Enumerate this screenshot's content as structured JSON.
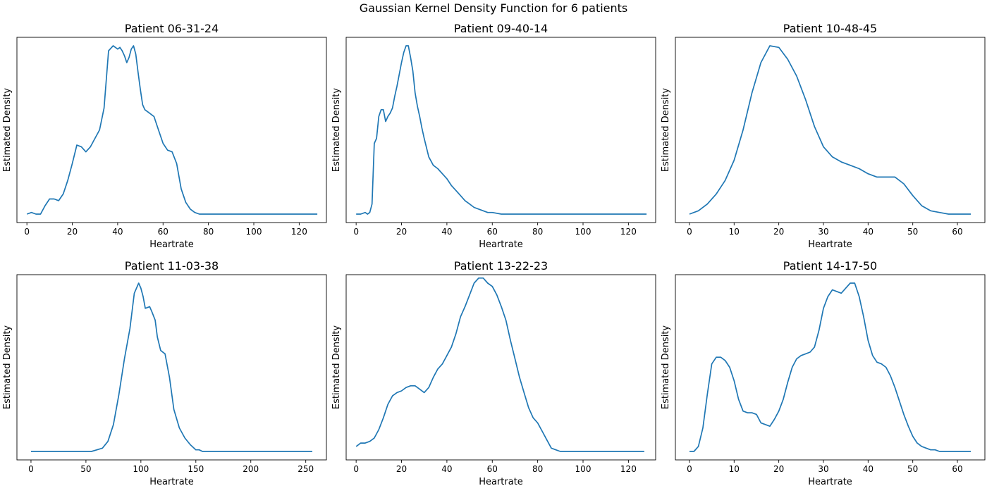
{
  "figure": {
    "suptitle": "Gaussian Kernel Density Function for 6 patients",
    "line_color": "#1f77b4"
  },
  "chart_data": [
    {
      "type": "line",
      "title": "Patient 06-31-24",
      "xlabel": "Heartrate",
      "ylabel": "Estimated Density",
      "xticks": [
        0,
        20,
        40,
        60,
        80,
        100,
        120
      ],
      "xlim": [
        -4.4,
        132
      ],
      "ylim": [
        -0.05,
        1.05
      ],
      "yticks_visible": false,
      "x": [
        0,
        2,
        4,
        6,
        8,
        10,
        12,
        14,
        16,
        18,
        20,
        22,
        24,
        26,
        28,
        30,
        32,
        34,
        36,
        38,
        39,
        40,
        41,
        42,
        43,
        44,
        45,
        46,
        47,
        48,
        49,
        50,
        51,
        52,
        54,
        56,
        58,
        60,
        62,
        64,
        66,
        68,
        70,
        72,
        74,
        76,
        78,
        80,
        90,
        100,
        110,
        120,
        128
      ],
      "y": [
        0.0,
        0.01,
        0.0,
        0.0,
        0.05,
        0.09,
        0.09,
        0.08,
        0.12,
        0.2,
        0.3,
        0.41,
        0.4,
        0.37,
        0.4,
        0.45,
        0.5,
        0.63,
        0.97,
        1.0,
        0.99,
        0.98,
        0.99,
        0.97,
        0.94,
        0.9,
        0.93,
        0.98,
        1.0,
        0.95,
        0.84,
        0.74,
        0.65,
        0.62,
        0.6,
        0.58,
        0.5,
        0.42,
        0.38,
        0.37,
        0.3,
        0.15,
        0.07,
        0.03,
        0.01,
        0.0,
        0.0,
        0.0,
        0.0,
        0.0,
        0.0,
        0.0,
        0.0
      ]
    },
    {
      "type": "line",
      "title": "Patient 09-40-14",
      "xlabel": "Heartrate",
      "ylabel": "Estimated Density",
      "xticks": [
        0,
        20,
        40,
        60,
        80,
        100,
        120
      ],
      "xlim": [
        -4.4,
        132
      ],
      "ylim": [
        -0.05,
        1.05
      ],
      "yticks_visible": false,
      "x": [
        0,
        2,
        4,
        5,
        6,
        7,
        8,
        9,
        10,
        11,
        12,
        13,
        14,
        15,
        16,
        17,
        18,
        19,
        20,
        21,
        22,
        23,
        24,
        25,
        26,
        27,
        28,
        29,
        30,
        32,
        34,
        36,
        38,
        40,
        42,
        44,
        46,
        48,
        50,
        52,
        54,
        56,
        58,
        60,
        64,
        70,
        80,
        90,
        100,
        110,
        120,
        128
      ],
      "y": [
        0.0,
        0.0,
        0.01,
        0.0,
        0.01,
        0.06,
        0.42,
        0.45,
        0.58,
        0.62,
        0.62,
        0.55,
        0.58,
        0.6,
        0.63,
        0.7,
        0.76,
        0.83,
        0.9,
        0.96,
        1.0,
        1.0,
        0.93,
        0.85,
        0.72,
        0.64,
        0.58,
        0.51,
        0.45,
        0.34,
        0.29,
        0.27,
        0.24,
        0.21,
        0.17,
        0.14,
        0.11,
        0.08,
        0.06,
        0.04,
        0.03,
        0.02,
        0.01,
        0.01,
        0.0,
        0.0,
        0.0,
        0.0,
        0.0,
        0.0,
        0.0,
        0.0
      ]
    },
    {
      "type": "line",
      "title": "Patient 10-48-45",
      "xlabel": "Heartrate",
      "ylabel": "Estimated Density",
      "xticks": [
        0,
        10,
        20,
        30,
        40,
        50,
        60
      ],
      "xlim": [
        -3.15,
        66.15
      ],
      "ylim": [
        -0.05,
        1.05
      ],
      "yticks_visible": false,
      "x": [
        0,
        2,
        4,
        6,
        8,
        10,
        12,
        14,
        16,
        18,
        20,
        22,
        24,
        26,
        28,
        30,
        32,
        34,
        36,
        38,
        40,
        42,
        44,
        46,
        48,
        50,
        52,
        54,
        56,
        58,
        60,
        63
      ],
      "y": [
        0.0,
        0.02,
        0.06,
        0.12,
        0.2,
        0.32,
        0.5,
        0.72,
        0.9,
        1.0,
        0.99,
        0.92,
        0.82,
        0.68,
        0.52,
        0.4,
        0.34,
        0.31,
        0.29,
        0.27,
        0.24,
        0.22,
        0.22,
        0.22,
        0.18,
        0.11,
        0.05,
        0.02,
        0.01,
        0.0,
        0.0,
        0.0
      ]
    },
    {
      "type": "line",
      "title": "Patient 11-03-38",
      "xlabel": "Heartrate",
      "ylabel": "Estimated Density",
      "xticks": [
        0,
        50,
        100,
        150,
        200,
        250
      ],
      "xlim": [
        -12.8,
        268.8
      ],
      "ylim": [
        -0.05,
        1.05
      ],
      "yticks_visible": false,
      "x": [
        0,
        10,
        20,
        30,
        40,
        50,
        55,
        60,
        65,
        70,
        75,
        80,
        85,
        90,
        94,
        98,
        100,
        102,
        104,
        108,
        110,
        113,
        115,
        118,
        122,
        126,
        130,
        135,
        140,
        145,
        150,
        153,
        156,
        160,
        170,
        180,
        200,
        220,
        240,
        256
      ],
      "y": [
        0.0,
        0.0,
        0.0,
        0.0,
        0.0,
        0.0,
        0.0,
        0.01,
        0.02,
        0.06,
        0.16,
        0.34,
        0.55,
        0.73,
        0.94,
        1.0,
        0.97,
        0.92,
        0.85,
        0.86,
        0.83,
        0.78,
        0.68,
        0.6,
        0.58,
        0.44,
        0.25,
        0.14,
        0.08,
        0.04,
        0.01,
        0.01,
        0.0,
        0.0,
        0.0,
        0.0,
        0.0,
        0.0,
        0.0,
        0.0
      ]
    },
    {
      "type": "line",
      "title": "Patient 13-22-23",
      "xlabel": "Heartrate",
      "ylabel": "Estimated Density",
      "xticks": [
        0,
        20,
        40,
        60,
        80,
        100,
        120
      ],
      "xlim": [
        -4.4,
        132
      ],
      "ylim": [
        -0.05,
        1.05
      ],
      "yticks_visible": false,
      "x": [
        0,
        2,
        4,
        6,
        8,
        10,
        12,
        14,
        16,
        18,
        20,
        22,
        24,
        26,
        28,
        30,
        32,
        34,
        36,
        38,
        40,
        42,
        44,
        46,
        48,
        50,
        52,
        54,
        56,
        58,
        60,
        62,
        64,
        66,
        68,
        70,
        72,
        74,
        76,
        78,
        80,
        82,
        84,
        86,
        88,
        90,
        95,
        100,
        110,
        120,
        127
      ],
      "y": [
        0.03,
        0.05,
        0.05,
        0.06,
        0.08,
        0.13,
        0.2,
        0.28,
        0.33,
        0.35,
        0.36,
        0.38,
        0.39,
        0.39,
        0.37,
        0.35,
        0.38,
        0.44,
        0.49,
        0.52,
        0.57,
        0.62,
        0.7,
        0.8,
        0.86,
        0.93,
        1.0,
        1.03,
        1.03,
        1.0,
        0.98,
        0.93,
        0.86,
        0.78,
        0.66,
        0.55,
        0.44,
        0.35,
        0.26,
        0.2,
        0.17,
        0.12,
        0.07,
        0.02,
        0.01,
        0.0,
        0.0,
        0.0,
        0.0,
        0.0,
        0.0
      ]
    },
    {
      "type": "line",
      "title": "Patient 14-17-50",
      "xlabel": "Heartrate",
      "ylabel": "Estimated Density",
      "xticks": [
        0,
        10,
        20,
        30,
        40,
        50,
        60
      ],
      "xlim": [
        -3.15,
        66.15
      ],
      "ylim": [
        -0.05,
        1.05
      ],
      "yticks_visible": false,
      "x": [
        0,
        1,
        2,
        3,
        4,
        5,
        6,
        7,
        8,
        9,
        10,
        11,
        12,
        13,
        14,
        15,
        16,
        17,
        18,
        19,
        20,
        21,
        22,
        23,
        24,
        25,
        26,
        27,
        28,
        29,
        30,
        31,
        32,
        33,
        34,
        35,
        36,
        37,
        38,
        39,
        40,
        41,
        42,
        43,
        44,
        45,
        46,
        47,
        48,
        49,
        50,
        51,
        52,
        53,
        54,
        55,
        56,
        58,
        60,
        63
      ],
      "y": [
        0.0,
        0.0,
        0.03,
        0.14,
        0.34,
        0.52,
        0.56,
        0.56,
        0.54,
        0.5,
        0.42,
        0.31,
        0.24,
        0.23,
        0.23,
        0.22,
        0.17,
        0.16,
        0.15,
        0.19,
        0.24,
        0.31,
        0.41,
        0.5,
        0.55,
        0.57,
        0.58,
        0.59,
        0.62,
        0.72,
        0.85,
        0.92,
        0.96,
        0.95,
        0.94,
        0.97,
        1.0,
        1.0,
        0.92,
        0.8,
        0.66,
        0.57,
        0.53,
        0.52,
        0.5,
        0.45,
        0.38,
        0.3,
        0.22,
        0.15,
        0.09,
        0.05,
        0.03,
        0.02,
        0.01,
        0.01,
        0.0,
        0.0,
        0.0,
        0.0
      ]
    }
  ]
}
